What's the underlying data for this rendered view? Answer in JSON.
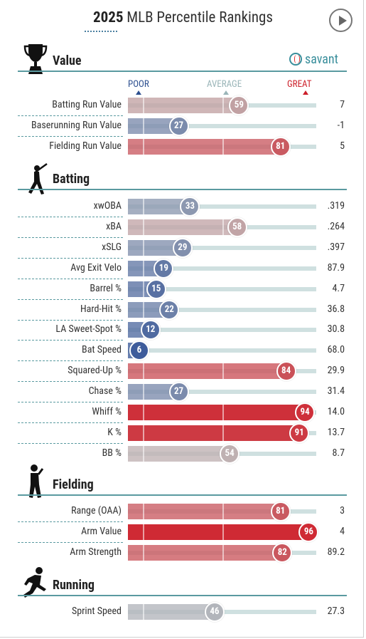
{
  "header": {
    "year": "2025",
    "title_rest": "MLB Percentile Rankings"
  },
  "brand": {
    "name": "savant"
  },
  "scale": {
    "poor": "POOR",
    "average": "AVERAGE",
    "great": "GREAT",
    "poor_color": "#2c4f8f",
    "average_color": "#9ab5b8",
    "great_color": "#cc1f2a"
  },
  "icons": {
    "value": "trophy-icon",
    "batting": "batter-icon",
    "fielding": "fielder-icon",
    "running": "runner-icon",
    "play": "play-icon",
    "savant": "baseball-icon"
  },
  "chart_data": {
    "type": "bar",
    "title": "2025 MLB Percentile Rankings",
    "xlim": [
      0,
      100
    ],
    "sections": [
      {
        "name": "Value",
        "rows": [
          {
            "label": "Batting Run Value",
            "percentile": 59,
            "value": "7"
          },
          {
            "label": "Baserunning Run Value",
            "percentile": 27,
            "value": "-1"
          },
          {
            "label": "Fielding Run Value",
            "percentile": 81,
            "value": "5"
          }
        ]
      },
      {
        "name": "Batting",
        "rows": [
          {
            "label": "xwOBA",
            "percentile": 33,
            "value": ".319"
          },
          {
            "label": "xBA",
            "percentile": 58,
            "value": ".264"
          },
          {
            "label": "xSLG",
            "percentile": 29,
            "value": ".397"
          },
          {
            "label": "Avg Exit Velo",
            "percentile": 19,
            "value": "87.9"
          },
          {
            "label": "Barrel %",
            "percentile": 15,
            "value": "4.7"
          },
          {
            "label": "Hard-Hit %",
            "percentile": 22,
            "value": "36.8"
          },
          {
            "label": "LA Sweet-Spot %",
            "percentile": 12,
            "value": "30.8"
          },
          {
            "label": "Bat Speed",
            "percentile": 6,
            "value": "68.0"
          },
          {
            "label": "Squared-Up %",
            "percentile": 84,
            "value": "29.9"
          },
          {
            "label": "Chase %",
            "percentile": 27,
            "value": "31.4"
          },
          {
            "label": "Whiff %",
            "percentile": 94,
            "value": "14.0"
          },
          {
            "label": "K %",
            "percentile": 91,
            "value": "13.7"
          },
          {
            "label": "BB %",
            "percentile": 54,
            "value": "8.7"
          }
        ]
      },
      {
        "name": "Fielding",
        "rows": [
          {
            "label": "Range (OAA)",
            "percentile": 81,
            "value": "3"
          },
          {
            "label": "Arm Value",
            "percentile": 96,
            "value": "4"
          },
          {
            "label": "Arm Strength",
            "percentile": 82,
            "value": "89.2"
          }
        ]
      },
      {
        "name": "Running",
        "rows": [
          {
            "label": "Sprint Speed",
            "percentile": 46,
            "value": "27.3"
          }
        ]
      }
    ]
  }
}
